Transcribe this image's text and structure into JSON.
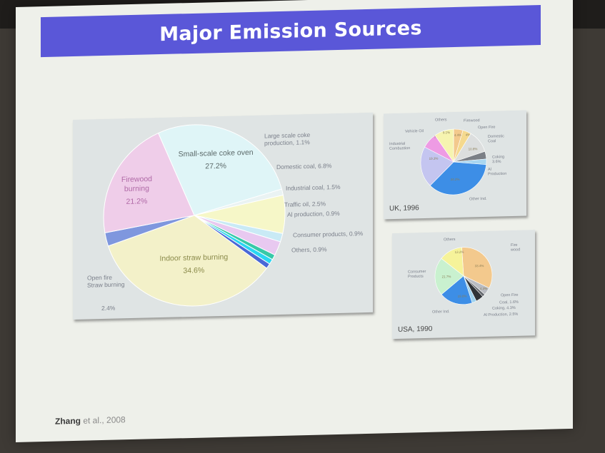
{
  "slide": {
    "title": "Major Emission Sources",
    "citation_author": "Zhang",
    "citation_rest": "et al., 2008"
  },
  "chart_data": [
    {
      "type": "pie",
      "title": "",
      "slices": [
        {
          "label": "Small-scale coke oven",
          "value": 27.2,
          "value_text": "27.2%",
          "color": "#dff5f7"
        },
        {
          "label": "Large scale coke production, 1.1%",
          "value": 1.1,
          "color": "#eaf3f3"
        },
        {
          "label": "Domestic coal, 6.8%",
          "value": 6.8,
          "color": "#f6f7c8"
        },
        {
          "label": "Industrial coal, 1.5%",
          "value": 1.5,
          "color": "#c9eaf5"
        },
        {
          "label": "Traffic oil, 2.5%",
          "value": 2.5,
          "color": "#e8c9f0"
        },
        {
          "label": "Al production, 0.9%",
          "value": 0.9,
          "color": "#37c9a8"
        },
        {
          "label": "Consumer products, 0.9%",
          "value": 0.9,
          "color": "#2ad6f2"
        },
        {
          "label": "Others, 0.9%",
          "value": 0.9,
          "color": "#4a68d6"
        },
        {
          "label": "Indoor straw burning",
          "value": 34.6,
          "value_text": "34.6%",
          "color": "#f3f1c9"
        },
        {
          "label": "Open fire Straw burning",
          "value": 2.4,
          "value_text": "2.4%",
          "color": "#7f97de"
        },
        {
          "label": "Firewood burning",
          "value": 21.2,
          "value_text": "21.2%",
          "color": "#efcde9"
        }
      ]
    },
    {
      "type": "pie",
      "title": "UK, 1996",
      "slices": [
        {
          "label": "Firewood",
          "value": 4.4,
          "value_text": "4.4%",
          "color": "#f3c98d"
        },
        {
          "label": "Open Fire",
          "value": 4.0,
          "value_text": "4%",
          "color": "#f5d98e"
        },
        {
          "label": "Domestic Coal",
          "value": 10.8,
          "value_text": "10.8%",
          "color": "#dcdede"
        },
        {
          "label": "Coking",
          "value": 3.6,
          "value_text": "3.6%",
          "color": "#7b7f86"
        },
        {
          "label": "Al Production",
          "value": 2.6,
          "value_text": "2.6%",
          "color": "#a9d6f0"
        },
        {
          "label": "Other Ind.",
          "value": 34.2,
          "value_text": "34.2%",
          "color": "#3d8ee6"
        },
        {
          "label": "Industrial Combustion",
          "value": 19.3,
          "value_text": "19.3%",
          "color": "#c4c5f0"
        },
        {
          "label": "Vehicle Oil",
          "value": 7.2,
          "value_text": "7.2%",
          "color": "#ee9be4"
        },
        {
          "label": "Others",
          "value": 9.1,
          "value_text": "9.1%",
          "color": "#f6f4b0"
        }
      ]
    },
    {
      "type": "pie",
      "title": "USA, 1990",
      "slices": [
        {
          "label": "Fire wood",
          "value": 33.4,
          "value_text": "33.4%",
          "color": "#f3c98d"
        },
        {
          "label": "Open Fire",
          "value": 4.3,
          "value_text": "4.3%",
          "color": "#b9bcc2"
        },
        {
          "label": "Coal, 1.6%",
          "value": 1.6,
          "color": "#666a70"
        },
        {
          "label": "Coking, 4.3%",
          "value": 4.3,
          "color": "#2f3338"
        },
        {
          "label": "Al Production, 2.5%",
          "value": 2.5,
          "color": "#9fd2ee"
        },
        {
          "label": "Other Ind.",
          "value": 19.0,
          "value_text": "19.0%",
          "color": "#3d8ee6"
        },
        {
          "label": "Consumer Products",
          "value": 21.7,
          "value_text": "21.7%",
          "color": "#c9f1cf"
        },
        {
          "label": "Others",
          "value": 13.2,
          "value_text": "13.2%",
          "color": "#f6f39a"
        }
      ]
    }
  ]
}
